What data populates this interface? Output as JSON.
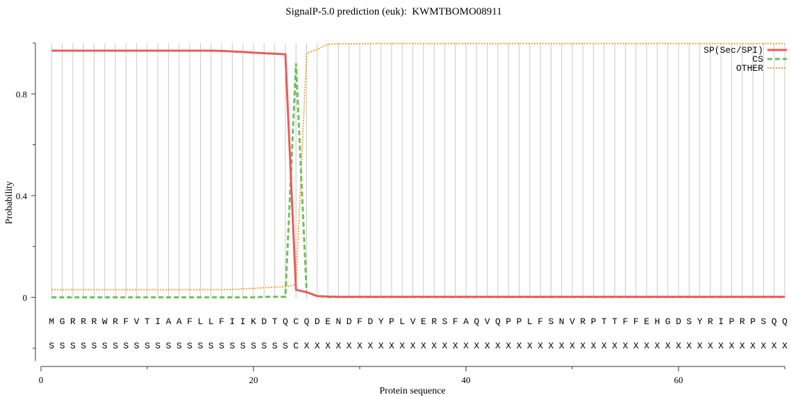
{
  "chart_data": {
    "type": "line",
    "title": "SignalP-5.0 prediction (euk):  KWMTBOMO08911",
    "xlabel": "Protein sequence",
    "ylabel": "Probability",
    "xlim": [
      0,
      70
    ],
    "ylim": [
      -0.25,
      1.0
    ],
    "xticks": [
      0,
      20,
      40,
      60
    ],
    "xminor_ticks": [
      10,
      30,
      50,
      70
    ],
    "yticks": [
      0,
      {
        "value": 0.4,
        "label": "0.4"
      },
      {
        "value": 0.8,
        "label": "0.8"
      }
    ],
    "yminor_ticks": [
      -0.2,
      0.2,
      0.6,
      1.0
    ],
    "grid": true,
    "legend": "upper right",
    "x": [
      1,
      2,
      3,
      4,
      5,
      6,
      7,
      8,
      9,
      10,
      11,
      12,
      13,
      14,
      15,
      16,
      17,
      18,
      19,
      20,
      21,
      22,
      23,
      24,
      25,
      26,
      27,
      28,
      29,
      30,
      31,
      32,
      33,
      34,
      35,
      36,
      37,
      38,
      39,
      40,
      41,
      42,
      43,
      44,
      45,
      46,
      47,
      48,
      49,
      50,
      51,
      52,
      53,
      54,
      55,
      56,
      57,
      58,
      59,
      60,
      61,
      62,
      63,
      64,
      65,
      66,
      67,
      68,
      69,
      70
    ],
    "residues": [
      "M",
      "G",
      "R",
      "R",
      "R",
      "W",
      "R",
      "F",
      "V",
      "T",
      "I",
      "A",
      "A",
      "F",
      "L",
      "L",
      "F",
      "I",
      "I",
      "K",
      "D",
      "T",
      "Q",
      "C",
      "Q",
      "D",
      "E",
      "N",
      "D",
      "F",
      "D",
      "Y",
      "P",
      "L",
      "V",
      "E",
      "R",
      "S",
      "F",
      "A",
      "Q",
      "V",
      "Q",
      "P",
      "P",
      "L",
      "F",
      "S",
      "N",
      "V",
      "R",
      "P",
      "T",
      "T",
      "F",
      "F",
      "E",
      "H",
      "G",
      "D",
      "S",
      "Y",
      "R",
      "I",
      "P",
      "R",
      "P",
      "S",
      "Q",
      "Q"
    ],
    "predictions": [
      "S",
      "S",
      "S",
      "S",
      "S",
      "S",
      "S",
      "S",
      "S",
      "S",
      "S",
      "S",
      "S",
      "S",
      "S",
      "S",
      "S",
      "S",
      "S",
      "S",
      "S",
      "S",
      "S",
      "C",
      "X",
      "X",
      "X",
      "X",
      "X",
      "X",
      "X",
      "X",
      "X",
      "X",
      "X",
      "X",
      "X",
      "X",
      "X",
      "X",
      "X",
      "X",
      "X",
      "X",
      "X",
      "X",
      "X",
      "X",
      "X",
      "X",
      "X",
      "X",
      "X",
      "X",
      "X",
      "X",
      "X",
      "X",
      "X",
      "X",
      "X",
      "X",
      "X",
      "X",
      "X",
      "X",
      "X",
      "X",
      "X",
      "X"
    ],
    "series": [
      {
        "name": "SP(Sec/SPI)",
        "color": "#ec5a5a",
        "style": "solid",
        "values": [
          0.97,
          0.97,
          0.97,
          0.97,
          0.97,
          0.97,
          0.97,
          0.97,
          0.97,
          0.97,
          0.97,
          0.97,
          0.97,
          0.97,
          0.97,
          0.97,
          0.969,
          0.967,
          0.965,
          0.962,
          0.96,
          0.958,
          0.956,
          0.03,
          0.02,
          0.005,
          0.003,
          0.002,
          0.002,
          0.002,
          0.002,
          0.002,
          0.002,
          0.002,
          0.002,
          0.002,
          0.002,
          0.002,
          0.002,
          0.002,
          0.002,
          0.002,
          0.002,
          0.002,
          0.002,
          0.002,
          0.002,
          0.002,
          0.002,
          0.002,
          0.002,
          0.002,
          0.002,
          0.002,
          0.002,
          0.002,
          0.002,
          0.002,
          0.002,
          0.002,
          0.002,
          0.002,
          0.002,
          0.002,
          0.002,
          0.002,
          0.002,
          0.002,
          0.002,
          0.002
        ]
      },
      {
        "name": "CS",
        "color": "#6dbf5a",
        "style": "dashed",
        "values": [
          0,
          0,
          0,
          0,
          0,
          0,
          0,
          0,
          0,
          0,
          0,
          0,
          0,
          0,
          0,
          0,
          0,
          0,
          0,
          0,
          0.002,
          0.002,
          0.002,
          0.92,
          0.02,
          0.005,
          0.001,
          0.001,
          0.001,
          0.001,
          0.001,
          0.001,
          0.001,
          0.001,
          0.001,
          0.001,
          0.001,
          0.001,
          0.001,
          0.001,
          0.001,
          0.001,
          0.001,
          0.001,
          0.001,
          0.001,
          0.001,
          0.001,
          0.001,
          0.001,
          0.001,
          0.001,
          0.001,
          0.001,
          0.001,
          0.001,
          0.001,
          0.001,
          0.001,
          0.001,
          0.001,
          0.001,
          0.001,
          0.001,
          0.001,
          0.001,
          0.001,
          0.001,
          0.001,
          0.001
        ]
      },
      {
        "name": "OTHER",
        "color": "#f0a030",
        "style": "dotted",
        "values": [
          0.03,
          0.03,
          0.03,
          0.03,
          0.03,
          0.03,
          0.03,
          0.03,
          0.03,
          0.03,
          0.03,
          0.03,
          0.03,
          0.03,
          0.03,
          0.03,
          0.03,
          0.031,
          0.033,
          0.035,
          0.038,
          0.04,
          0.042,
          0.05,
          0.96,
          0.975,
          0.995,
          0.997,
          0.997,
          0.997,
          0.998,
          0.998,
          0.998,
          0.998,
          0.998,
          0.998,
          0.998,
          0.998,
          0.998,
          0.998,
          0.998,
          0.998,
          0.998,
          0.998,
          0.998,
          0.998,
          0.998,
          0.998,
          0.998,
          0.998,
          0.998,
          0.998,
          0.998,
          0.998,
          0.998,
          0.998,
          0.998,
          0.998,
          0.998,
          0.998,
          0.998,
          0.998,
          0.998,
          0.998,
          0.998,
          0.998,
          0.998,
          0.998,
          0.998,
          0.998
        ]
      }
    ]
  }
}
